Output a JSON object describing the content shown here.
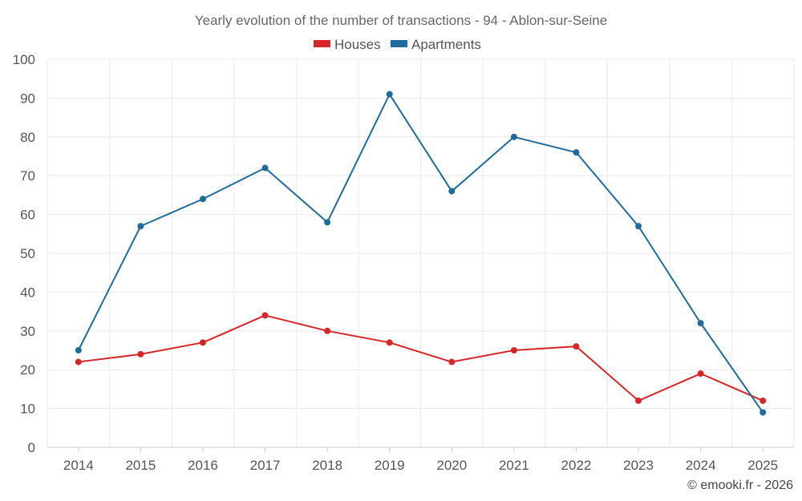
{
  "chart_data": {
    "type": "line",
    "title": "Yearly evolution of the number of transactions - 94 - Ablon-sur-Seine",
    "categories": [
      "2014",
      "2015",
      "2016",
      "2017",
      "2018",
      "2019",
      "2020",
      "2021",
      "2022",
      "2023",
      "2024",
      "2025"
    ],
    "series": [
      {
        "name": "Houses",
        "color": "#d62728",
        "values": [
          22,
          24,
          27,
          34,
          30,
          27,
          22,
          25,
          26,
          12,
          19,
          12
        ]
      },
      {
        "name": "Apartments",
        "color": "#1f6b9a",
        "values": [
          25,
          57,
          64,
          72,
          58,
          91,
          66,
          80,
          76,
          57,
          32,
          9
        ]
      }
    ],
    "ylim": [
      0,
      100
    ],
    "yticks": [
      0,
      10,
      20,
      30,
      40,
      50,
      60,
      70,
      80,
      90,
      100
    ],
    "xlabel": "",
    "ylabel": "",
    "grid": true,
    "legend": "top-center"
  },
  "credit": "© emooki.fr - 2026"
}
